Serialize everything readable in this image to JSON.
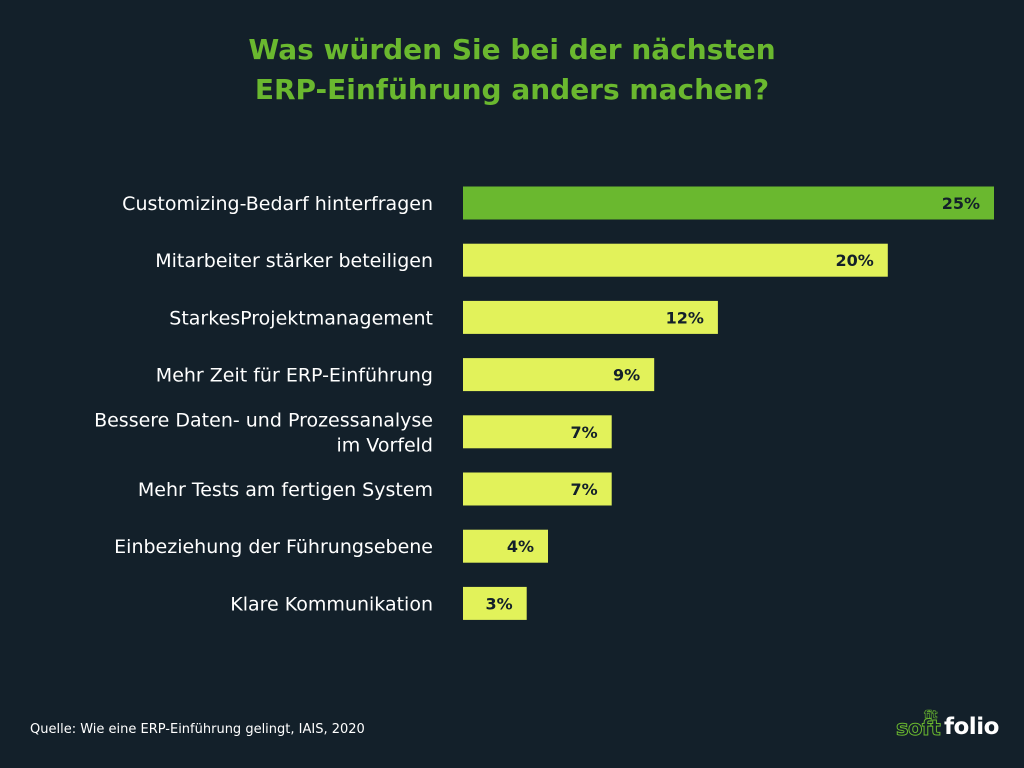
{
  "title": {
    "line1": "Was würden Sie bei der nächsten",
    "line2": "ERP-Einführung anders machen?"
  },
  "colors": {
    "background": "#13202a",
    "title": "#6ab82f",
    "highlight_bar": "#6ab82f",
    "bar": "#e2f25a",
    "label_text": "#ffffff",
    "value_text": "#13202a"
  },
  "chart_data": {
    "type": "bar",
    "orientation": "horizontal",
    "title": "Was würden Sie bei der nächsten ERP-Einführung anders machen?",
    "xlabel": "",
    "ylabel": "",
    "xlim": [
      0,
      25
    ],
    "unit": "%",
    "categories": [
      [
        "Customizing-Bedarf hinterfragen"
      ],
      [
        "Mitarbeiter stärker beteiligen"
      ],
      [
        "StarkesProjektmanagement"
      ],
      [
        "Mehr Zeit für ERP-Einführung"
      ],
      [
        "Bessere Daten- und Prozessanalyse",
        "im Vorfeld"
      ],
      [
        "Mehr Tests am fertigen System"
      ],
      [
        "Einbeziehung der Führungsebene"
      ],
      [
        "Klare Kommunikation"
      ]
    ],
    "values": [
      25,
      20,
      12,
      9,
      7,
      7,
      4,
      3
    ],
    "value_labels": [
      "25%",
      "20%",
      "12%",
      "9%",
      "7%",
      "7%",
      "4%",
      "3%"
    ],
    "highlight_index": 0,
    "grid": false,
    "legend": "none"
  },
  "footer": {
    "source": "Quelle: Wie eine ERP-Einführung gelingt, IAIS, 2020",
    "logo": {
      "part1": "soft",
      "part2": "folio",
      "superscript": "fit"
    }
  }
}
